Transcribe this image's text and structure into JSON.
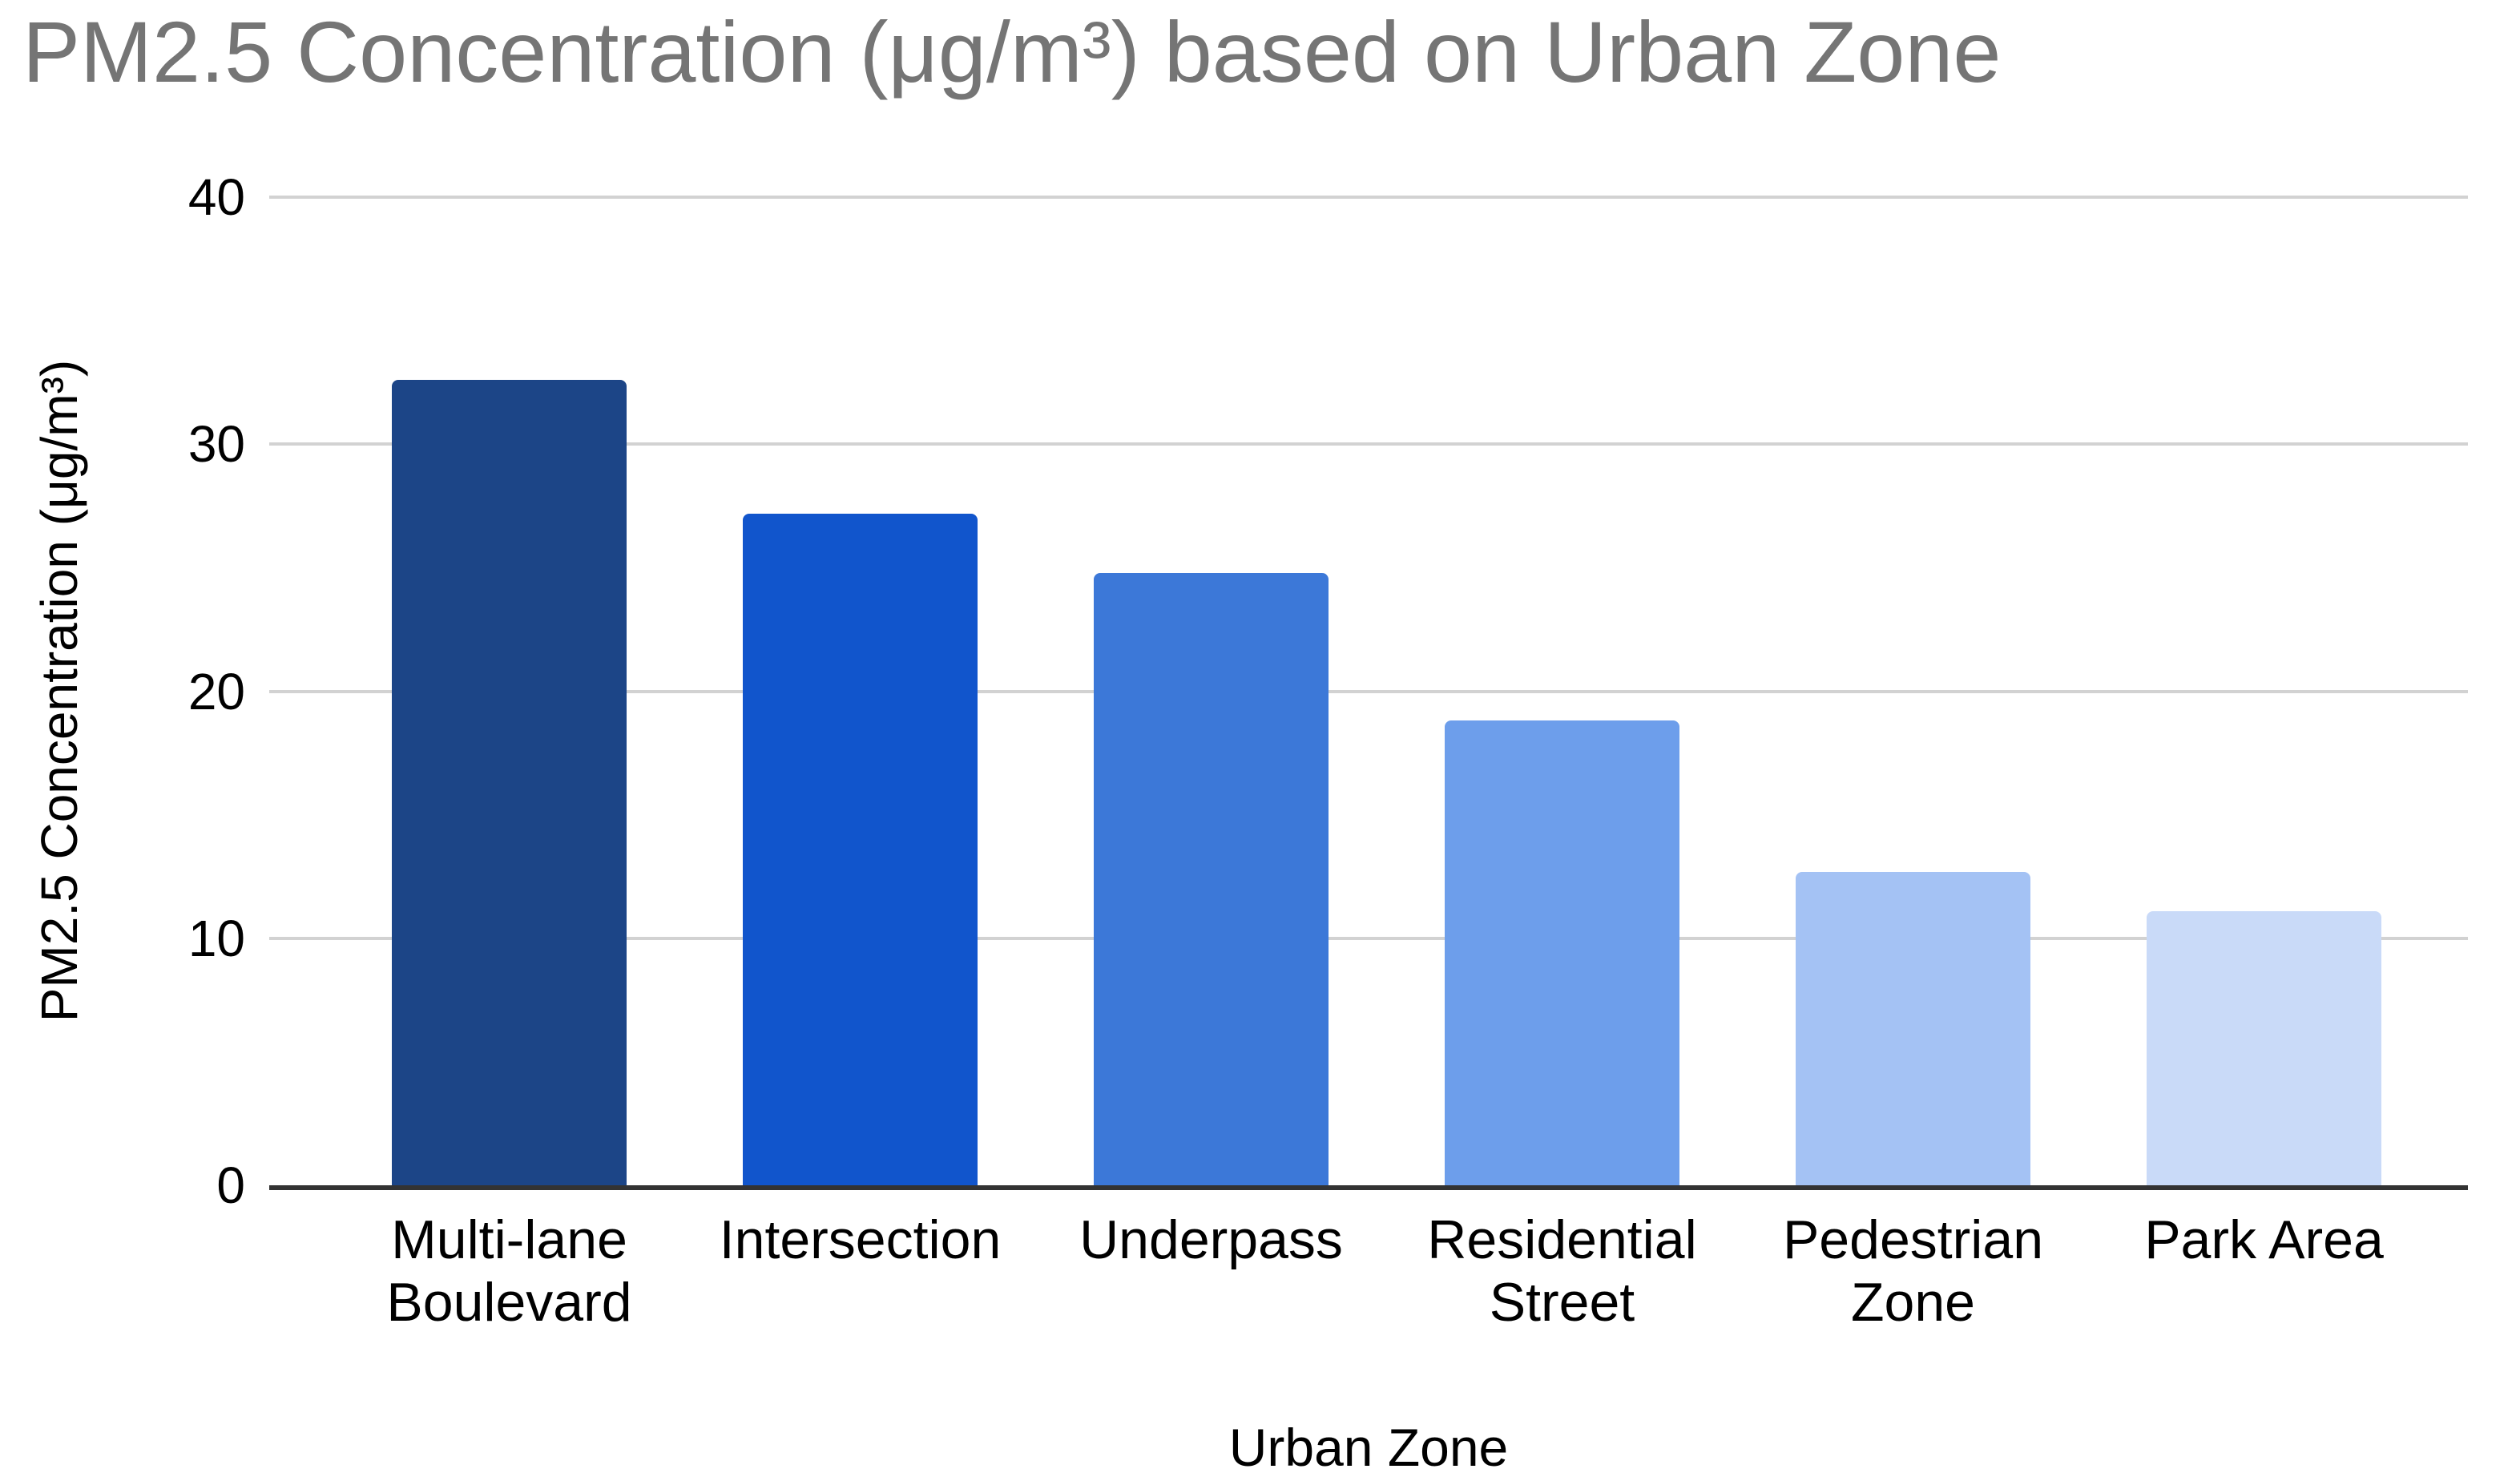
{
  "chart_data": {
    "type": "bar",
    "title": "PM2.5 Concentration (μg/m³) based on Urban Zone",
    "xlabel": "Urban Zone",
    "ylabel": "PM2.5 Concentration (μg/m³)",
    "categories": [
      "Multi-lane Boulevard",
      "Intersection",
      "Underpass",
      "Residential Street",
      "Pedestrian Zone",
      "Park Area"
    ],
    "values": [
      32.6,
      27.2,
      24.8,
      18.8,
      12.7,
      11.1
    ],
    "bar_colors": [
      "#1c4587",
      "#1155cc",
      "#3c78d8",
      "#6d9eeb",
      "#a4c2f4",
      "#c9daf8"
    ],
    "ylim": [
      0,
      40
    ],
    "yticks": [
      0,
      10,
      20,
      30,
      40
    ],
    "grid": true,
    "legend_position": "none",
    "colors": {
      "title_text": "#757575",
      "axis_text": "#000000",
      "gridline": "#d2d2d2",
      "axis_line": "#333333",
      "background": "#ffffff"
    }
  }
}
